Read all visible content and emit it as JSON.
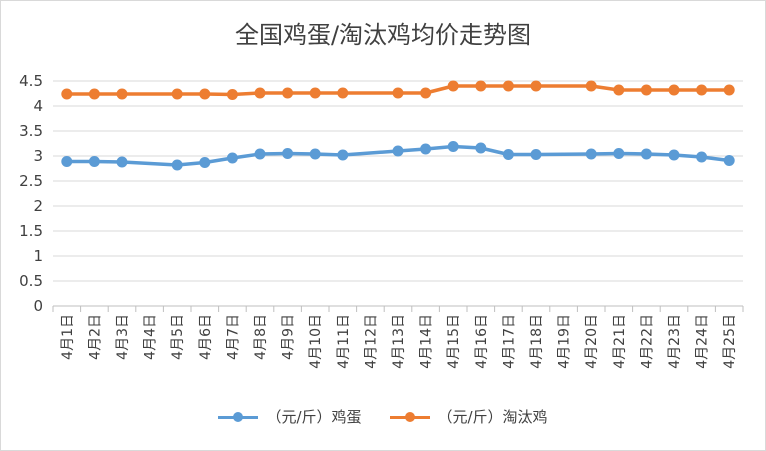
{
  "chart_data": {
    "type": "line",
    "title": "全国鸡蛋/淘汰鸡均价走势图",
    "categories": [
      "4月1日",
      "4月2日",
      "4月3日",
      "4月4日",
      "4月5日",
      "4月6日",
      "4月7日",
      "4月8日",
      "4月9日",
      "4月10日",
      "4月11日",
      "4月12日",
      "4月13日",
      "4月14日",
      "4月15日",
      "4月16日",
      "4月17日",
      "4月18日",
      "4月19日",
      "4月20日",
      "4月21日",
      "4月22日",
      "4月23日",
      "4月24日",
      "4月25日"
    ],
    "yticks": [
      "0",
      "0.5",
      "1",
      "1.5",
      "2",
      "2.5",
      "3",
      "3.5",
      "4",
      "4.5"
    ],
    "ylim": [
      0,
      4.5
    ],
    "grid": true,
    "legend_position": "bottom",
    "series": [
      {
        "name": "（元/斤）鸡蛋",
        "color": "#5b9bd5",
        "values": [
          2.89,
          2.89,
          2.88,
          null,
          2.82,
          2.87,
          2.96,
          3.04,
          3.05,
          3.04,
          3.02,
          null,
          3.1,
          3.14,
          3.19,
          3.16,
          3.03,
          3.03,
          null,
          3.04,
          3.05,
          3.04,
          3.02,
          2.98,
          2.91
        ]
      },
      {
        "name": "（元/斤）淘汰鸡",
        "color": "#ed7d31",
        "values": [
          4.24,
          4.24,
          4.24,
          null,
          4.24,
          4.24,
          4.23,
          4.26,
          4.26,
          4.26,
          4.26,
          null,
          4.26,
          4.26,
          4.4,
          4.4,
          4.4,
          4.4,
          null,
          4.4,
          4.32,
          4.32,
          4.32,
          4.32,
          4.32
        ]
      }
    ]
  }
}
